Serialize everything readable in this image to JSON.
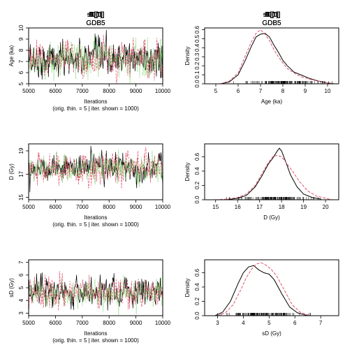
{
  "colors": {
    "chain1": "#000000",
    "chain2": "#DF536B",
    "chain3": "#61D04F"
  },
  "chart_data": [
    {
      "type": "line",
      "kind": "trace",
      "title": "A[1]",
      "subtitle": "GDB5",
      "xlabel": "Iterations",
      "xnote": "(orig. thin. = 5 | iter. shown = 1000)",
      "ylabel": "Age (ka)",
      "xlim": [
        5000,
        10000
      ],
      "ylim": [
        5,
        10
      ],
      "xticks": [
        5000,
        6000,
        7000,
        8000,
        9000,
        10000
      ],
      "yticks": [
        5,
        6,
        7,
        8,
        9,
        10
      ],
      "series": [
        {
          "mean": 7.2,
          "sd": 0.75
        },
        {
          "mean": 7.2,
          "sd": 0.75
        },
        {
          "mean": 7.2,
          "sd": 0.75
        }
      ]
    },
    {
      "type": "line",
      "kind": "density",
      "title": "A[1]",
      "subtitle": "GDB5",
      "xlabel": "Age (ka)",
      "ylabel": "Density",
      "xlim": [
        4.5,
        10.5
      ],
      "ylim": [
        0,
        0.62
      ],
      "xticks": [
        5,
        6,
        7,
        8,
        9,
        10
      ],
      "yticks": [
        0.0,
        0.1,
        0.2,
        0.3,
        0.4,
        0.5,
        0.6
      ],
      "rug_range": [
        5.8,
        10.2
      ],
      "series": [
        {
          "x": [
            5.2,
            5.6,
            6.0,
            6.3,
            6.6,
            6.8,
            7.0,
            7.2,
            7.4,
            7.6,
            7.8,
            8.0,
            8.2,
            8.5,
            8.8,
            9.2,
            9.6,
            10.0,
            10.3
          ],
          "y": [
            0.0,
            0.02,
            0.1,
            0.25,
            0.42,
            0.52,
            0.55,
            0.56,
            0.52,
            0.43,
            0.35,
            0.26,
            0.2,
            0.13,
            0.1,
            0.06,
            0.03,
            0.01,
            0.0
          ]
        },
        {
          "x": [
            5.2,
            5.6,
            6.0,
            6.3,
            6.6,
            6.8,
            7.0,
            7.2,
            7.4,
            7.6,
            7.8,
            8.0,
            8.2,
            8.5,
            8.8,
            9.2,
            9.6,
            10.0,
            10.3
          ],
          "y": [
            0.0,
            0.03,
            0.12,
            0.3,
            0.47,
            0.56,
            0.6,
            0.55,
            0.48,
            0.38,
            0.3,
            0.23,
            0.17,
            0.12,
            0.08,
            0.05,
            0.03,
            0.01,
            0.0
          ]
        }
      ]
    },
    {
      "type": "line",
      "kind": "trace",
      "title": "D[1]",
      "subtitle": "GDB5",
      "xlabel": "Iterations",
      "xnote": "(orig. thin. = 5 | iter. shown = 1000)",
      "ylabel": "D (Gy)",
      "xlim": [
        5000,
        10000
      ],
      "ylim": [
        14.8,
        19.6
      ],
      "xticks": [
        5000,
        6000,
        7000,
        8000,
        9000,
        10000
      ],
      "yticks": [
        15,
        17,
        19
      ],
      "series": [
        {
          "mean": 17.6,
          "sd": 0.55
        },
        {
          "mean": 17.5,
          "sd": 0.65
        },
        {
          "mean": 17.5,
          "sd": 0.6
        }
      ]
    },
    {
      "type": "line",
      "kind": "density",
      "title": "D[1]",
      "subtitle": "GDB5",
      "xlabel": "D (Gy)",
      "ylabel": "Density",
      "xlim": [
        14.5,
        20.6
      ],
      "ylim": [
        0,
        0.78
      ],
      "xticks": [
        15,
        16,
        17,
        18,
        19,
        20
      ],
      "yticks": [
        0.0,
        0.2,
        0.4,
        0.6
      ],
      "rug_range": [
        15.5,
        19.8
      ],
      "series": [
        {
          "x": [
            15.5,
            16.0,
            16.4,
            16.8,
            17.1,
            17.4,
            17.6,
            17.8,
            17.9,
            18.0,
            18.2,
            18.4,
            18.7,
            19.0,
            19.4,
            19.8
          ],
          "y": [
            0.0,
            0.02,
            0.06,
            0.18,
            0.33,
            0.5,
            0.58,
            0.68,
            0.72,
            0.68,
            0.52,
            0.35,
            0.18,
            0.08,
            0.03,
            0.01
          ]
        },
        {
          "x": [
            15.0,
            15.5,
            16.0,
            16.4,
            16.8,
            17.1,
            17.4,
            17.6,
            17.8,
            18.0,
            18.2,
            18.5,
            18.8,
            19.2,
            19.6,
            20.0,
            20.3
          ],
          "y": [
            0.0,
            0.01,
            0.03,
            0.08,
            0.2,
            0.36,
            0.52,
            0.6,
            0.62,
            0.6,
            0.52,
            0.4,
            0.26,
            0.12,
            0.05,
            0.02,
            0.0
          ]
        }
      ]
    },
    {
      "type": "line",
      "kind": "trace",
      "title": "sD[1]",
      "subtitle": "GDB5",
      "xlabel": "Iterations",
      "xnote": "(orig. thin. = 5 | iter. shown = 1000)",
      "ylabel": "sD (Gy)",
      "xlim": [
        5000,
        10000
      ],
      "ylim": [
        2.8,
        7.2
      ],
      "xticks": [
        5000,
        6000,
        7000,
        8000,
        9000,
        10000
      ],
      "yticks": [
        3,
        4,
        5,
        6,
        7
      ],
      "series": [
        {
          "mean": 4.6,
          "sd": 0.55
        },
        {
          "mean": 4.6,
          "sd": 0.55
        },
        {
          "mean": 4.5,
          "sd": 0.45
        }
      ]
    },
    {
      "type": "line",
      "kind": "density",
      "title": "sD[1]",
      "subtitle": "GDB5",
      "xlabel": "sD (Gy)",
      "ylabel": "Density",
      "xlim": [
        2.5,
        7.7
      ],
      "ylim": [
        0,
        0.78
      ],
      "xticks": [
        3,
        4,
        5,
        6,
        7
      ],
      "yticks": [
        0.0,
        0.2,
        0.4,
        0.6
      ],
      "rug_range": [
        3.0,
        6.6
      ],
      "series": [
        {
          "x": [
            2.9,
            3.2,
            3.5,
            3.8,
            4.0,
            4.2,
            4.4,
            4.6,
            4.8,
            5.0,
            5.2,
            5.5,
            5.8,
            6.1,
            6.5
          ],
          "y": [
            0.0,
            0.05,
            0.2,
            0.45,
            0.6,
            0.68,
            0.7,
            0.64,
            0.6,
            0.58,
            0.5,
            0.3,
            0.12,
            0.04,
            0.0
          ]
        },
        {
          "x": [
            3.0,
            3.3,
            3.6,
            3.9,
            4.1,
            4.3,
            4.5,
            4.7,
            4.9,
            5.1,
            5.3,
            5.6,
            5.9,
            6.2,
            6.6
          ],
          "y": [
            0.0,
            0.04,
            0.15,
            0.36,
            0.52,
            0.64,
            0.72,
            0.74,
            0.7,
            0.64,
            0.55,
            0.35,
            0.15,
            0.05,
            0.0
          ]
        }
      ]
    }
  ]
}
